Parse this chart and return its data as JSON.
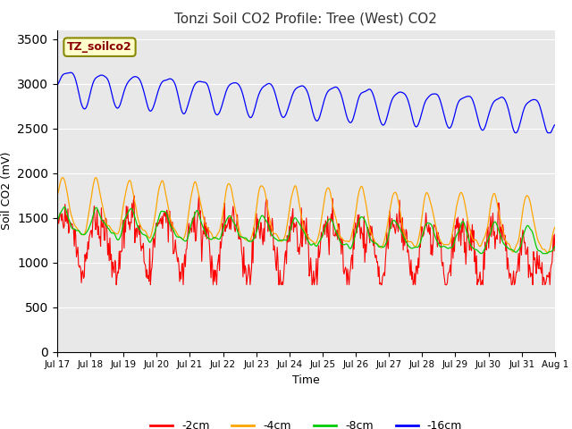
{
  "title": "Tonzi Soil CO2 Profile: Tree (West) CO2",
  "xlabel": "Time",
  "ylabel": "Soil CO2 (mV)",
  "ylim": [
    0,
    3600
  ],
  "yticks": [
    0,
    500,
    1000,
    1500,
    2000,
    2500,
    3000,
    3500
  ],
  "background_color": "#ffffff",
  "plot_bg_color": "#e8e8e8",
  "legend_label": "TZ_soilco2",
  "legend_bg": "#ffffcc",
  "legend_border": "#888800",
  "series": [
    {
      "label": "-2cm",
      "color": "#ff0000"
    },
    {
      "label": "-4cm",
      "color": "#ffa500"
    },
    {
      "label": "-8cm",
      "color": "#00cc00"
    },
    {
      "label": "-16cm",
      "color": "#0000ff"
    }
  ],
  "xtick_labels": [
    "Jul 17",
    "Jul 18",
    "Jul 19",
    "Jul 20",
    "Jul 21",
    "Jul 22",
    "Jul 23",
    "Jul 24",
    "Jul 25",
    "Jul 26",
    "Jul 27",
    "Jul 28",
    "Jul 29",
    "Jul 30",
    "Jul 31",
    "Aug 1"
  ],
  "n_points": 700
}
